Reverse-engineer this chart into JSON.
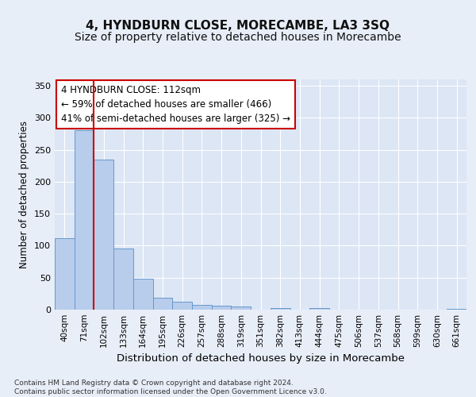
{
  "title": "4, HYNDBURN CLOSE, MORECAMBE, LA3 3SQ",
  "subtitle": "Size of property relative to detached houses in Morecambe",
  "xlabel": "Distribution of detached houses by size in Morecambe",
  "ylabel": "Number of detached properties",
  "categories": [
    "40sqm",
    "71sqm",
    "102sqm",
    "133sqm",
    "164sqm",
    "195sqm",
    "226sqm",
    "257sqm",
    "288sqm",
    "319sqm",
    "351sqm",
    "382sqm",
    "413sqm",
    "444sqm",
    "475sqm",
    "506sqm",
    "537sqm",
    "568sqm",
    "599sqm",
    "630sqm",
    "661sqm"
  ],
  "values": [
    112,
    280,
    235,
    96,
    49,
    19,
    12,
    7,
    6,
    5,
    0,
    3,
    0,
    2,
    0,
    0,
    0,
    0,
    0,
    0,
    1
  ],
  "bar_color": "#b8ccec",
  "bar_edge_color": "#6699cc",
  "vline_color": "#cc0000",
  "annotation_line1": "4 HYNDBURN CLOSE: 112sqm",
  "annotation_line2": "← 59% of detached houses are smaller (466)",
  "annotation_line3": "41% of semi-detached houses are larger (325) →",
  "annotation_box_color": "white",
  "annotation_box_edge_color": "#cc0000",
  "ylim": [
    0,
    360
  ],
  "yticks": [
    0,
    50,
    100,
    150,
    200,
    250,
    300,
    350
  ],
  "bg_color": "#e8eef8",
  "axes_bg_color": "#dce6f5",
  "grid_color": "white",
  "footer_text": "Contains HM Land Registry data © Crown copyright and database right 2024.\nContains public sector information licensed under the Open Government Licence v3.0.",
  "title_fontsize": 11,
  "subtitle_fontsize": 10,
  "xlabel_fontsize": 9.5,
  "ylabel_fontsize": 8.5,
  "annotation_fontsize": 8.5,
  "tick_fontsize": 7.5
}
